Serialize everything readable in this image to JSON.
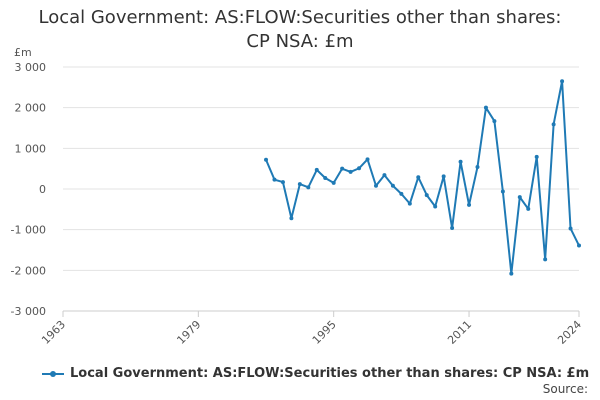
{
  "chart_data": {
    "type": "line",
    "title_lines": [
      "Local Government: AS:FLOW:Securities other than shares:",
      "CP NSA: £m"
    ],
    "ylabel": "£m",
    "xlabel": "",
    "xlim": [
      1963,
      2024
    ],
    "ylim": [
      -3000,
      3000
    ],
    "yticks": [
      3000,
      2000,
      1000,
      0,
      -1000,
      -2000,
      -3000
    ],
    "ytick_labels": [
      "3 000",
      "2 000",
      "1 000",
      "0",
      "-1 000",
      "-2 000",
      "-3 000"
    ],
    "xticks": [
      1963,
      1979,
      1995,
      2011,
      2024
    ],
    "xtick_labels": [
      "1963",
      "1979",
      "1995",
      "2011",
      "2024"
    ],
    "grid": "horizontal",
    "legend": "bottom",
    "series": [
      {
        "name": "Local Government: AS:FLOW:Securities other than shares: CP NSA: £m",
        "color": "#1f7ab5",
        "x": [
          1987,
          1988,
          1989,
          1990,
          1991,
          1992,
          1993,
          1994,
          1995,
          1996,
          1997,
          1998,
          1999,
          2000,
          2001,
          2002,
          2003,
          2004,
          2005,
          2006,
          2007,
          2008,
          2009,
          2010,
          2011,
          2012,
          2013,
          2014,
          2015,
          2016,
          2017,
          2018,
          2019,
          2020,
          2021,
          2022,
          2023,
          2024
        ],
        "y": [
          720,
          230,
          170,
          -720,
          120,
          40,
          470,
          270,
          150,
          500,
          420,
          510,
          730,
          80,
          340,
          80,
          -120,
          -360,
          290,
          -150,
          -430,
          310,
          -960,
          670,
          -390,
          540,
          2000,
          1670,
          -60,
          -2080,
          -200,
          -490,
          790,
          -1730,
          1590,
          2650,
          -970,
          -1390
        ]
      }
    ]
  },
  "source_label": "Source:"
}
